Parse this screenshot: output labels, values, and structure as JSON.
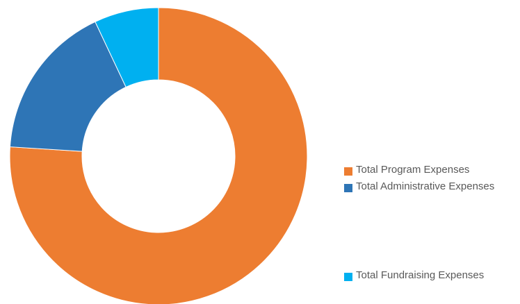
{
  "chart_data": {
    "type": "donut",
    "categories": [
      "Total Program Expenses",
      "Total Administrative Expenses",
      "Total Fundraising Expenses"
    ],
    "values": [
      76,
      17,
      7
    ],
    "colors": [
      "#ed7d31",
      "#2e75b6",
      "#00b0f0"
    ],
    "legend": "right"
  }
}
